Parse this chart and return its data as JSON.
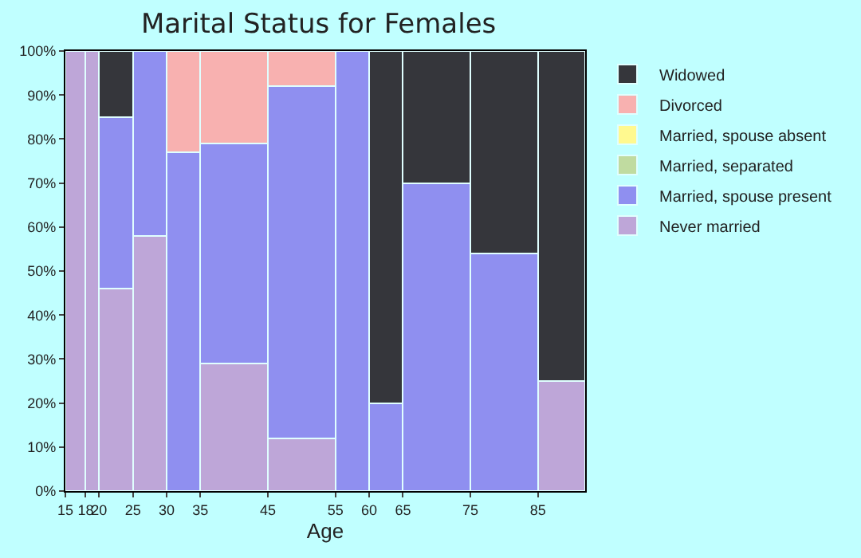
{
  "chart_data": {
    "type": "bar",
    "stacked": true,
    "title": "Marital Status for Females",
    "xlabel": "Age",
    "x": [
      16.5,
      19,
      22.5,
      27.5,
      32.5,
      40,
      50,
      57.5,
      62.5,
      70,
      80,
      88.5
    ],
    "xlim": [
      15,
      92
    ],
    "xticks": [
      15,
      18,
      20,
      25,
      30,
      35,
      45,
      55,
      60,
      65,
      75,
      85
    ],
    "ylim": [
      0,
      100
    ],
    "yticks": [
      {
        "value": 0,
        "label": "0%"
      },
      {
        "value": 10,
        "label": "10%"
      },
      {
        "value": 20,
        "label": "20%"
      },
      {
        "value": 30,
        "label": "30%"
      },
      {
        "value": 40,
        "label": "40%"
      },
      {
        "value": 50,
        "label": "50%"
      },
      {
        "value": 60,
        "label": "60%"
      },
      {
        "value": 70,
        "label": "70%"
      },
      {
        "value": 80,
        "label": "80%"
      },
      {
        "value": 90,
        "label": "90%"
      },
      {
        "value": 100,
        "label": "100%"
      }
    ],
    "legend": "right",
    "series": [
      {
        "name": "Never married",
        "color": "#bea6d8",
        "values": [
          100,
          100,
          46,
          58,
          0,
          29,
          12,
          0,
          0,
          0,
          0,
          25
        ]
      },
      {
        "name": "Married, spouse present",
        "color": "#8f8ff0",
        "values": [
          0,
          0,
          39,
          42,
          77,
          50,
          80,
          100,
          20,
          70,
          54,
          0
        ]
      },
      {
        "name": "Married, separated",
        "color": "#c0dba0",
        "values": [
          0,
          0,
          0,
          0,
          0,
          0,
          0,
          0,
          0,
          0,
          0,
          0
        ]
      },
      {
        "name": "Married, spouse absent",
        "color": "#fff98f",
        "values": [
          0,
          0,
          0,
          0,
          0,
          0,
          0,
          0,
          0,
          0,
          0,
          0
        ]
      },
      {
        "name": "Divorced",
        "color": "#f8b1b0",
        "values": [
          0,
          0,
          0,
          0,
          23,
          21,
          8,
          0,
          0,
          0,
          0,
          0
        ]
      },
      {
        "name": "Widowed",
        "color": "#35363b",
        "values": [
          0,
          0,
          15,
          0,
          0,
          0,
          0,
          0,
          80,
          30,
          46,
          75
        ]
      }
    ]
  }
}
